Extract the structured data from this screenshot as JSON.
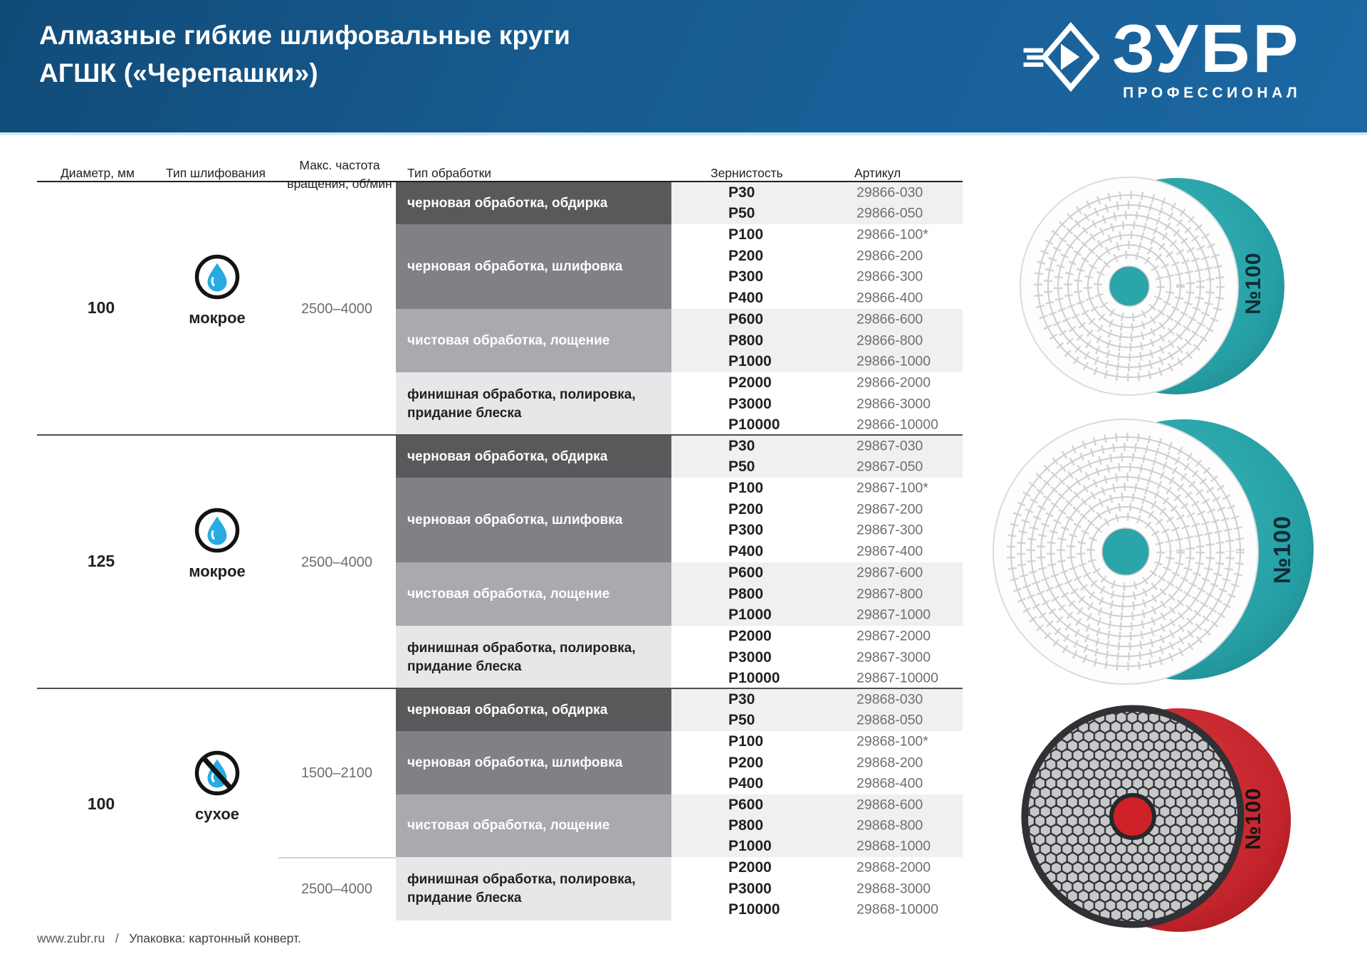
{
  "header": {
    "title_line1": "Алмазные гибкие шлифовальные круги",
    "title_line2": "АГШК («Черепашки»)",
    "logo_text": "ЗУБР",
    "logo_subtext": "ПРОФЕССИОНАЛ"
  },
  "table": {
    "columns": [
      "Диаметр, мм",
      "Тип шлифования",
      "Макс. частота вращения, об/мин",
      "Тип обработки",
      "Зернистость",
      "Артикул"
    ],
    "groups": [
      {
        "diameter": "100",
        "grinding": {
          "icon": "water-drop-icon",
          "label": "мокрое"
        },
        "frequencies": [
          {
            "value": "2500–4000"
          }
        ],
        "blocks": [
          {
            "label": "черновая обработка, обдирка",
            "rows": [
              [
                "P30",
                "29866-030"
              ],
              [
                "P50",
                "29866-050"
              ]
            ]
          },
          {
            "label": "черновая обработка, шлифовка",
            "rows": [
              [
                "P100",
                "29866-100*"
              ],
              [
                "P200",
                "29866-200"
              ],
              [
                "P300",
                "29866-300"
              ],
              [
                "P400",
                "29866-400"
              ]
            ]
          },
          {
            "label": "чистовая обработка, лощение",
            "rows": [
              [
                "P600",
                "29866-600"
              ],
              [
                "P800",
                "29866-800"
              ],
              [
                "P1000",
                "29866-1000"
              ]
            ]
          },
          {
            "label": "финишная обработка, полировка, придание блеска",
            "rows": [
              [
                "P2000",
                "29866-2000"
              ],
              [
                "P3000",
                "29866-3000"
              ],
              [
                "P10000",
                "29866-10000"
              ]
            ]
          }
        ]
      },
      {
        "diameter": "125",
        "grinding": {
          "icon": "water-drop-icon",
          "label": "мокрое"
        },
        "frequencies": [
          {
            "value": "2500–4000"
          }
        ],
        "blocks": [
          {
            "label": "черновая обработка, обдирка",
            "rows": [
              [
                "P30",
                "29867-030"
              ],
              [
                "P50",
                "29867-050"
              ]
            ]
          },
          {
            "label": "черновая обработка, шлифовка",
            "rows": [
              [
                "P100",
                "29867-100*"
              ],
              [
                "P200",
                "29867-200"
              ],
              [
                "P300",
                "29867-300"
              ],
              [
                "P400",
                "29867-400"
              ]
            ]
          },
          {
            "label": "чистовая обработка, лощение",
            "rows": [
              [
                "P600",
                "29867-600"
              ],
              [
                "P800",
                "29867-800"
              ],
              [
                "P1000",
                "29867-1000"
              ]
            ]
          },
          {
            "label": "финишная обработка, полировка, придание блеска",
            "rows": [
              [
                "P2000",
                "29867-2000"
              ],
              [
                "P3000",
                "29867-3000"
              ],
              [
                "P10000",
                "29867-10000"
              ]
            ]
          }
        ]
      },
      {
        "diameter": "100",
        "grinding": {
          "icon": "crossed-water-drop-icon",
          "label": "сухое"
        },
        "frequencies": [
          {
            "value": "1500–2100"
          },
          {
            "value": "2500–4000"
          }
        ],
        "blocks": [
          {
            "label": "черновая обработка, обдирка",
            "rows": [
              [
                "P30",
                "29868-030"
              ],
              [
                "P50",
                "29868-050"
              ]
            ]
          },
          {
            "label": "черновая обработка, шлифовка",
            "rows": [
              [
                "P100",
                "29868-100*"
              ],
              [
                "P200",
                "29868-200"
              ],
              [
                "P400",
                "29868-400"
              ]
            ]
          },
          {
            "label": "чистовая обработка, лощение",
            "rows": [
              [
                "P600",
                "29868-600"
              ],
              [
                "P800",
                "29868-800"
              ],
              [
                "P1000",
                "29868-1000"
              ]
            ]
          },
          {
            "label": "финишная обработка, полировка, придание блеска",
            "rows": [
              [
                "P2000",
                "29868-2000"
              ],
              [
                "P3000",
                "29868-3000"
              ],
              [
                "P10000",
                "29868-10000"
              ]
            ]
          }
        ]
      }
    ]
  },
  "products": [
    {
      "badge": "№100",
      "variant": "wet"
    },
    {
      "badge": "№100",
      "variant": "wet"
    },
    {
      "badge": "№100",
      "variant": "dry"
    }
  ],
  "colors": {
    "block_dark": "#58595b",
    "block_medium": "#808184",
    "block_light": "#a8aaad",
    "block_finish": "#e6e7e8",
    "stripe": "#f0f0f1",
    "teal": "#2aa5a9",
    "red": "#ce2127",
    "drop_blue": "#29abe2"
  },
  "footer": {
    "site": "www.zubr.ru",
    "separator": "/",
    "packaging": "Упаковка: картонный конверт."
  }
}
